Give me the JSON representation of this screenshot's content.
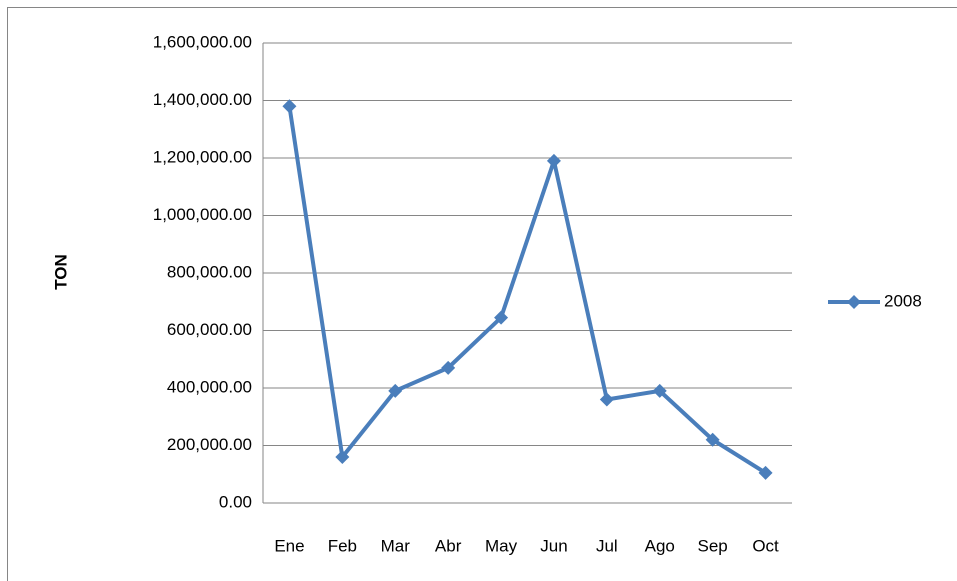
{
  "chart_data": {
    "type": "line",
    "y_label": "TON",
    "categories": [
      "Ene",
      "Feb",
      "Mar",
      "Abr",
      "May",
      "Jun",
      "Jul",
      "Ago",
      "Sep",
      "Oct"
    ],
    "series": [
      {
        "name": "2008",
        "color": "#4a7ebb",
        "values": [
          1380000,
          160000,
          390000,
          470000,
          645000,
          1190000,
          360000,
          390000,
          220000,
          105000
        ]
      }
    ],
    "ylim": [
      0,
      1600000
    ],
    "yticks": [
      {
        "value": 0,
        "label": "0.00"
      },
      {
        "value": 200000,
        "label": "200,000.00"
      },
      {
        "value": 400000,
        "label": "400,000.00"
      },
      {
        "value": 600000,
        "label": "600,000.00"
      },
      {
        "value": 800000,
        "label": "800,000.00"
      },
      {
        "value": 1000000,
        "label": "1,000,000.00"
      },
      {
        "value": 1200000,
        "label": "1,200,000.00"
      },
      {
        "value": 1400000,
        "label": "1,400,000.00"
      },
      {
        "value": 1600000,
        "label": "1,600,000.00"
      }
    ],
    "grid": true,
    "legend": "right"
  }
}
